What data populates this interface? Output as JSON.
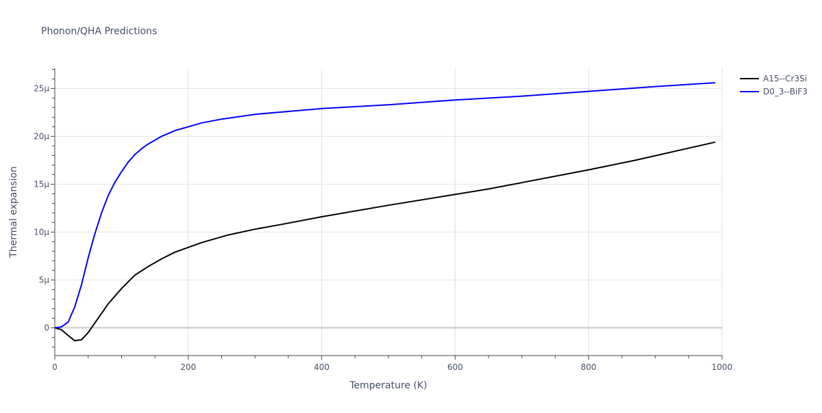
{
  "chart_data": {
    "type": "line",
    "title": "Phonon/QHA Predictions",
    "xlabel": "Temperature (K)",
    "ylabel": "Thermal expansion",
    "xlim": [
      0,
      1000
    ],
    "ylim": [
      -2.9,
      27.1
    ],
    "x_ticks": [
      0,
      200,
      400,
      600,
      800,
      1000
    ],
    "x_tick_labels": [
      "0",
      "200",
      "400",
      "600",
      "800",
      "1000"
    ],
    "y_ticks": [
      0,
      5,
      10,
      15,
      20,
      25
    ],
    "y_tick_labels": [
      "0",
      "5μ",
      "10μ",
      "15μ",
      "20μ",
      "25μ"
    ],
    "y_unit": "e-6",
    "grid": true,
    "legend_position": "top-right",
    "series": [
      {
        "name": "A15--Cr3Si",
        "color": "#000000",
        "x": [
          0,
          10,
          20,
          30,
          40,
          50,
          60,
          70,
          80,
          90,
          100,
          110,
          120,
          140,
          160,
          180,
          200,
          220,
          260,
          300,
          340,
          400,
          500,
          650,
          800,
          870,
          990
        ],
        "y": [
          0,
          -0.2,
          -0.8,
          -1.35,
          -1.25,
          -0.5,
          0.5,
          1.5,
          2.5,
          3.3,
          4.1,
          4.8,
          5.5,
          6.4,
          7.2,
          7.9,
          8.4,
          8.9,
          9.7,
          10.3,
          10.8,
          11.6,
          12.8,
          14.5,
          16.5,
          17.5,
          19.4
        ]
      },
      {
        "name": "D0_3--BiF3",
        "color": "#0000ff",
        "x": [
          0,
          10,
          20,
          30,
          40,
          50,
          60,
          70,
          80,
          90,
          100,
          110,
          120,
          130,
          140,
          150,
          160,
          170,
          180,
          200,
          220,
          250,
          300,
          350,
          400,
          450,
          500,
          600,
          700,
          800,
          900,
          990
        ],
        "y": [
          0,
          0.1,
          0.6,
          2.2,
          4.5,
          7.3,
          9.8,
          12.0,
          13.8,
          15.2,
          16.3,
          17.3,
          18.1,
          18.7,
          19.2,
          19.6,
          20.0,
          20.3,
          20.6,
          21.0,
          21.4,
          21.8,
          22.3,
          22.6,
          22.9,
          23.1,
          23.3,
          23.8,
          24.2,
          24.7,
          25.2,
          25.6
        ]
      }
    ]
  }
}
